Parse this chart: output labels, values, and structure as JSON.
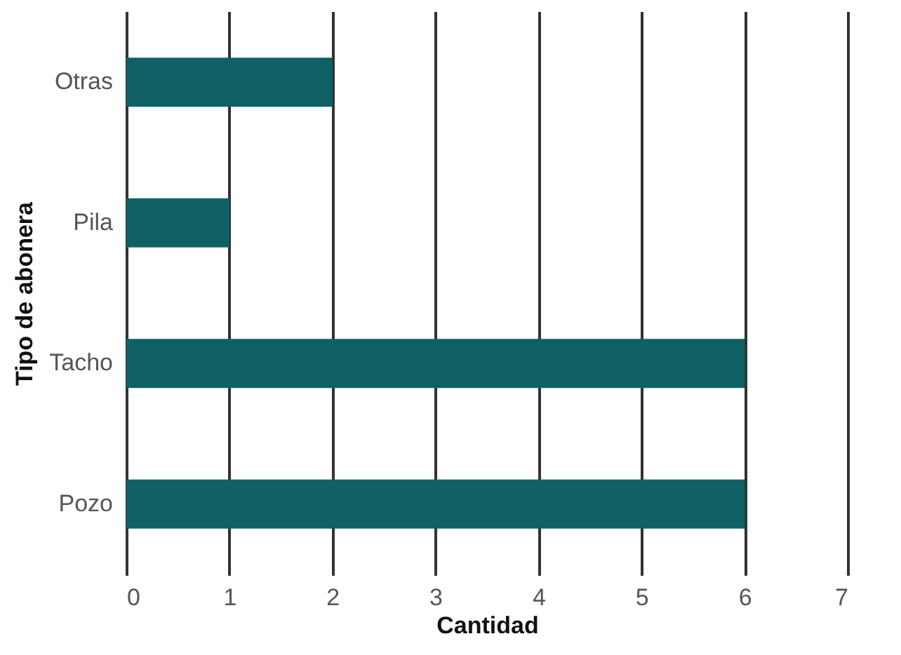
{
  "chart_data": {
    "type": "bar",
    "orientation": "horizontal",
    "xlabel": "Cantidad",
    "ylabel": "Tipo de abonera",
    "categories": [
      "Otras",
      "Pila",
      "Tacho",
      "Pozo"
    ],
    "values": [
      2,
      1,
      6,
      6
    ],
    "color": "#0f6163",
    "xlim": [
      0,
      7
    ],
    "xticks": [
      0,
      1,
      2,
      3,
      4,
      5,
      6,
      7
    ],
    "grid": "x"
  }
}
